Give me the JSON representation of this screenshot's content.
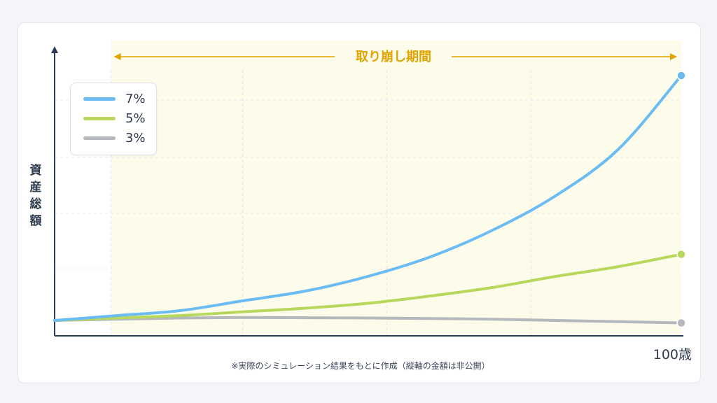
{
  "chart_data": {
    "type": "line",
    "title": "",
    "xlabel": "100歳",
    "ylabel": "資産総額",
    "annotations": {
      "period_label": "取り崩し期間",
      "note": "※実際のシミュレーション結果をもとに作成（縦軸の金額は非公開）"
    },
    "x": [
      0,
      10,
      20,
      30,
      40,
      50,
      60,
      70,
      80,
      90,
      100
    ],
    "x_unit": "relative time (0 = start, 100 = age 100)",
    "xlim": [
      0,
      100
    ],
    "ylim": [
      0,
      100
    ],
    "y_scale_note": "relative units; actual amounts not disclosed",
    "grid": true,
    "legend_placement": "top-left",
    "series": [
      {
        "name": "7%",
        "color": "#6bbcf2",
        "values": [
          0,
          2,
          4,
          8,
          12,
          18,
          26,
          37,
          51,
          70,
          100
        ]
      },
      {
        "name": "5%",
        "color": "#b7d85c",
        "values": [
          0,
          1,
          2,
          3.5,
          5,
          7,
          10,
          13.5,
          18,
          22,
          27
        ]
      },
      {
        "name": "3%",
        "color": "#b5b8bc",
        "values": [
          0,
          0.5,
          1,
          1.2,
          1.1,
          1,
          0.8,
          0.5,
          0,
          -0.5,
          -1
        ]
      }
    ],
    "shaded_region": {
      "label": "取り崩し期間",
      "x_start": 9,
      "x_end": 100,
      "color": "#fdfbea"
    }
  }
}
